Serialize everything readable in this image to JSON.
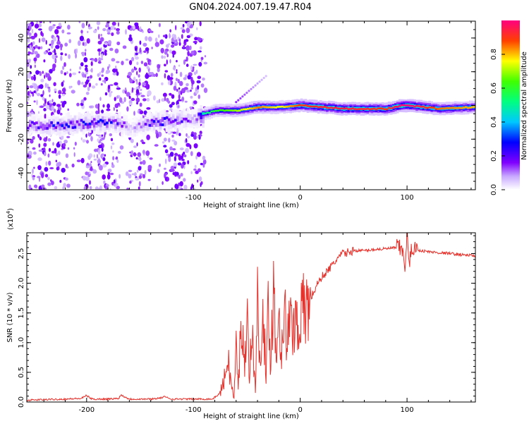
{
  "figure": {
    "title": "GN04.2024.007.19.47.R04"
  },
  "chart_data": [
    {
      "type": "heatmap",
      "xlabel": "Height of straight line (km)",
      "ylabel": "Frequency (Hz)",
      "xlim": [
        -256,
        164
      ],
      "ylim": [
        -50,
        50
      ],
      "xticks": [
        -200,
        -100,
        0,
        100
      ],
      "xtick_labels": [
        "-200",
        "-100",
        "0",
        "100"
      ],
      "yticks": [
        -40,
        -20,
        0,
        20,
        40
      ],
      "ytick_labels": [
        "-40",
        "-20",
        "0",
        "20",
        "40"
      ],
      "grid": false,
      "colorbar": {
        "label": "Normalized spectral amplitude",
        "range": [
          0,
          1
        ],
        "ticks": [
          0,
          0.2,
          0.4,
          0.6,
          0.8
        ],
        "tick_labels": [
          "0.0",
          "0.2",
          "0.4",
          "0.6",
          "0.8"
        ]
      },
      "ridge": {
        "x": [
          -256,
          -230,
          -210,
          -190,
          -170,
          -160,
          -140,
          -120,
          -100,
          -90,
          -80,
          -60,
          -40,
          -20,
          0,
          40,
          80,
          95,
          100,
          130,
          164
        ],
        "freq": [
          -12,
          -12,
          -11,
          -10,
          -11,
          -14,
          -10,
          -9,
          -8,
          -5,
          -3,
          -3,
          -1,
          -1,
          0,
          -2,
          -2,
          0,
          0,
          -2,
          -1
        ],
        "amp": [
          0.15,
          0.22,
          0.2,
          0.25,
          0.18,
          0.05,
          0.2,
          0.2,
          0.1,
          0.5,
          0.6,
          0.7,
          0.85,
          0.75,
          0.9,
          0.95,
          0.9,
          1.0,
          1.0,
          0.85,
          0.8
        ]
      }
    },
    {
      "type": "line",
      "xlabel": "Height of straight line (km)",
      "ylabel": "SNR (10 * v/v)",
      "y_multiplier": "(x10",
      "y_multiplier_exp": "4",
      "y_multiplier_close": ")",
      "xlim": [
        -256,
        164
      ],
      "ylim": [
        0,
        2.85
      ],
      "xticks": [
        -200,
        -100,
        0,
        100
      ],
      "xtick_labels": [
        "-200",
        "-100",
        "0",
        "100"
      ],
      "yticks": [
        0,
        0.5,
        1.0,
        1.5,
        2.0,
        2.5
      ],
      "ytick_labels": [
        "0.0",
        "0.5",
        "1.0",
        "1.5",
        "2.0",
        "2.5"
      ],
      "grid": false,
      "series": [
        {
          "color": "#e8302a",
          "x": [
            -256,
            -240,
            -220,
            -205,
            -200,
            -195,
            -180,
            -170,
            -168,
            -160,
            -140,
            -130,
            -128,
            -120,
            -100,
            -90,
            -82,
            -75,
            -70,
            -68,
            -65,
            -62,
            -60,
            -58,
            -55,
            -52,
            -50,
            -48,
            -45,
            -42,
            -40,
            -38,
            -35,
            -32,
            -30,
            -28,
            -25,
            -22,
            -20,
            -18,
            -15,
            -12,
            -10,
            -8,
            -5,
            -2,
            0,
            5,
            10,
            15,
            20,
            25,
            30,
            35,
            40,
            45,
            50,
            60,
            70,
            80,
            90,
            95,
            98,
            100,
            102,
            105,
            110,
            120,
            140,
            164
          ],
          "y": [
            0.03,
            0.04,
            0.05,
            0.06,
            0.11,
            0.05,
            0.05,
            0.06,
            0.12,
            0.05,
            0.05,
            0.07,
            0.09,
            0.05,
            0.05,
            0.05,
            0.05,
            0.15,
            0.45,
            0.8,
            0.35,
            0.05,
            0.95,
            0.2,
            1.55,
            0.4,
            1.95,
            0.45,
            1.1,
            0.25,
            1.65,
            0.6,
            1.9,
            0.35,
            1.5,
            0.75,
            1.85,
            0.7,
            1.7,
            0.85,
            1.55,
            1.0,
            1.35,
            1.25,
            1.4,
            1.35,
            1.45,
            1.55,
            1.75,
            1.95,
            2.1,
            2.2,
            2.3,
            2.42,
            2.5,
            2.52,
            2.55,
            2.55,
            2.57,
            2.58,
            2.6,
            2.58,
            2.3,
            2.85,
            2.3,
            2.62,
            2.56,
            2.53,
            2.5,
            2.46
          ]
        }
      ]
    }
  ]
}
